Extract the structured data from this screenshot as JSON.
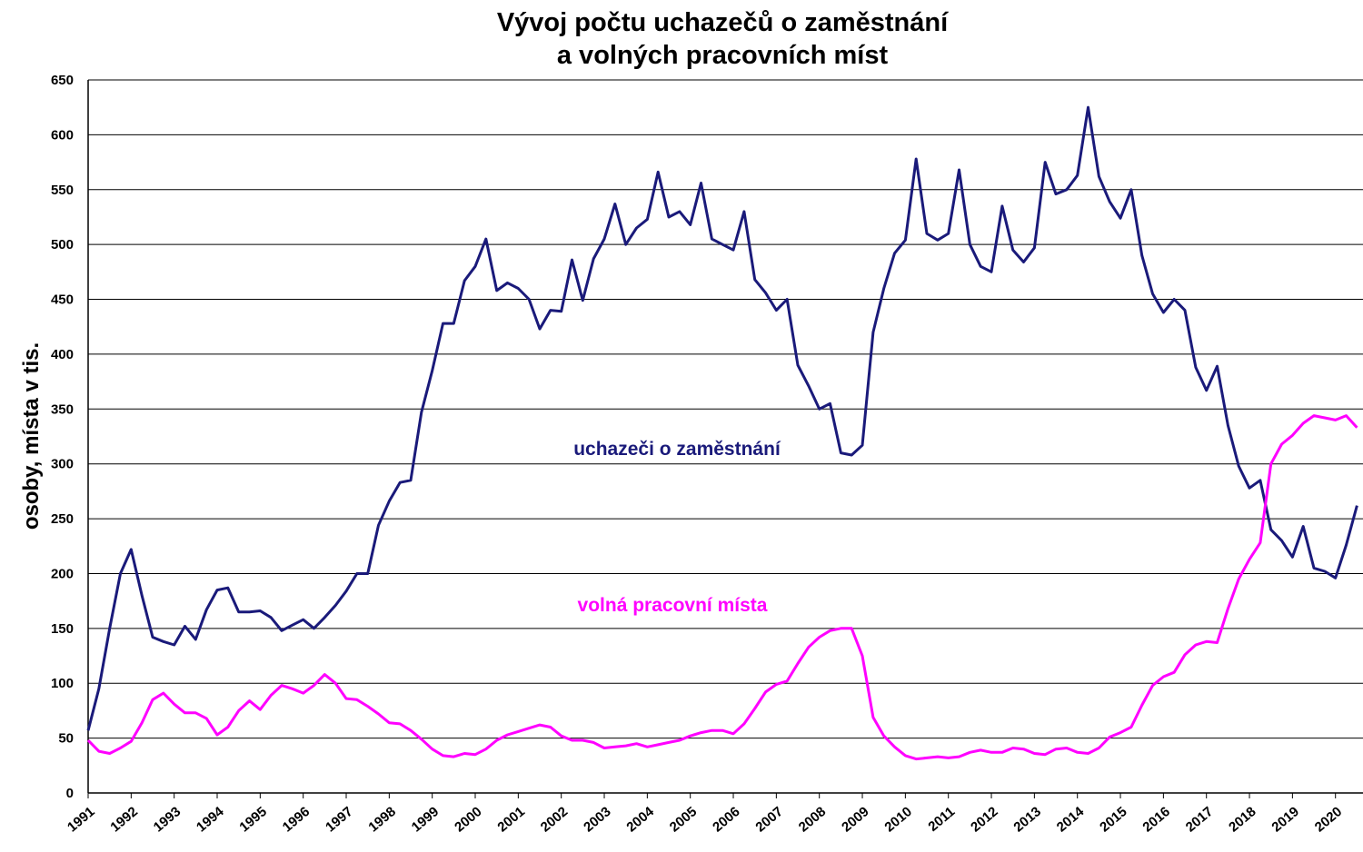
{
  "chart_data": {
    "type": "line",
    "title": [
      "Vývoj počtu uchazečů o zaměstnání",
      "a volných pracovních míst"
    ],
    "y_label": "osoby, místa v tis.",
    "annotations": [
      "uchazeči o zaměstnání",
      "volná pracovní místa"
    ],
    "x": [
      1991,
      1991.25,
      1991.5,
      1991.75,
      1992,
      1992.25,
      1992.5,
      1992.75,
      1993,
      1993.25,
      1993.5,
      1993.75,
      1994,
      1994.25,
      1994.5,
      1994.75,
      1995,
      1995.25,
      1995.5,
      1995.75,
      1996,
      1996.25,
      1996.5,
      1996.75,
      1997,
      1997.25,
      1997.5,
      1997.75,
      1998,
      1998.25,
      1998.5,
      1998.75,
      1999,
      1999.25,
      1999.5,
      1999.75,
      2000,
      2000.25,
      2000.5,
      2000.75,
      2001,
      2001.25,
      2001.5,
      2001.75,
      2002,
      2002.25,
      2002.5,
      2002.75,
      2003,
      2003.25,
      2003.5,
      2003.75,
      2004,
      2004.25,
      2004.5,
      2004.75,
      2005,
      2005.25,
      2005.5,
      2005.75,
      2006,
      2006.25,
      2006.5,
      2006.75,
      2007,
      2007.25,
      2007.5,
      2007.75,
      2008,
      2008.25,
      2008.5,
      2008.75,
      2009,
      2009.25,
      2009.5,
      2009.75,
      2010,
      2010.25,
      2010.5,
      2010.75,
      2011,
      2011.25,
      2011.5,
      2011.75,
      2012,
      2012.25,
      2012.5,
      2012.75,
      2013,
      2013.25,
      2013.5,
      2013.75,
      2014,
      2014.25,
      2014.5,
      2014.75,
      2015,
      2015.25,
      2015.5,
      2015.75,
      2016,
      2016.25,
      2016.5,
      2016.75,
      2017,
      2017.25,
      2017.5,
      2017.75,
      2018,
      2018.25,
      2018.5,
      2018.75,
      2019,
      2019.25,
      2019.5,
      2019.75,
      2020,
      2020.25,
      2020.5
    ],
    "series": [
      {
        "name": "uchazeči o zaměstnání",
        "color": "#1a1a7a",
        "values": [
          57,
          95,
          150,
          200,
          222,
          180,
          142,
          138,
          135,
          152,
          140,
          167,
          185,
          187,
          165,
          165,
          166,
          160,
          148,
          153,
          158,
          150,
          160,
          171,
          184,
          200,
          200,
          244,
          266,
          283,
          285,
          347,
          385,
          428,
          428,
          467,
          480,
          505,
          458,
          465,
          460,
          450,
          423,
          440,
          439,
          486,
          449,
          487,
          505,
          537,
          500,
          515,
          523,
          566,
          525,
          530,
          518,
          556,
          505,
          500,
          495,
          530,
          468,
          456,
          440,
          450,
          390,
          371,
          350,
          355,
          310,
          308,
          317,
          420,
          460,
          492,
          504,
          578,
          510,
          504,
          510,
          568,
          500,
          480,
          475,
          535,
          495,
          484,
          497,
          575,
          546,
          550,
          563,
          625,
          562,
          539,
          524,
          550,
          490,
          455,
          438,
          450,
          440,
          388,
          367,
          389,
          335,
          298,
          278,
          285,
          240,
          230,
          215,
          243,
          205,
          202,
          196,
          226,
          262
        ]
      },
      {
        "name": "volná pracovní místa",
        "color": "#ff00ff",
        "values": [
          48,
          38,
          36,
          41,
          47,
          64,
          85,
          91,
          81,
          73,
          73,
          68,
          53,
          60,
          75,
          84,
          76,
          89,
          98,
          95,
          91,
          98,
          108,
          100,
          86,
          85,
          79,
          72,
          64,
          63,
          57,
          49,
          40,
          34,
          33,
          36,
          35,
          40,
          48,
          53,
          56,
          59,
          62,
          60,
          52,
          48,
          48,
          46,
          41,
          42,
          43,
          45,
          42,
          44,
          46,
          48,
          52,
          55,
          57,
          57,
          54,
          63,
          77,
          92,
          99,
          102,
          118,
          133,
          142,
          148,
          150,
          150,
          125,
          69,
          52,
          42,
          34,
          31,
          32,
          33,
          32,
          33,
          37,
          39,
          37,
          37,
          41,
          40,
          36,
          35,
          40,
          41,
          37,
          36,
          41,
          51,
          55,
          60,
          80,
          98,
          106,
          110,
          126,
          135,
          138,
          137,
          168,
          195,
          213,
          228,
          300,
          318,
          326,
          337,
          344,
          342,
          340,
          344,
          333
        ]
      }
    ],
    "xlim": [
      1991,
      2020.64
    ],
    "xticks": [
      1991,
      1992,
      1993,
      1994,
      1995,
      1996,
      1997,
      1998,
      1999,
      2000,
      2001,
      2002,
      2003,
      2004,
      2005,
      2006,
      2007,
      2008,
      2009,
      2010,
      2011,
      2012,
      2013,
      2014,
      2015,
      2016,
      2017,
      2018,
      2019,
      2020
    ],
    "ylim": [
      0,
      650
    ],
    "yticks": [
      0,
      50,
      100,
      150,
      200,
      250,
      300,
      350,
      400,
      450,
      500,
      550,
      600,
      650
    ],
    "grid": true
  }
}
